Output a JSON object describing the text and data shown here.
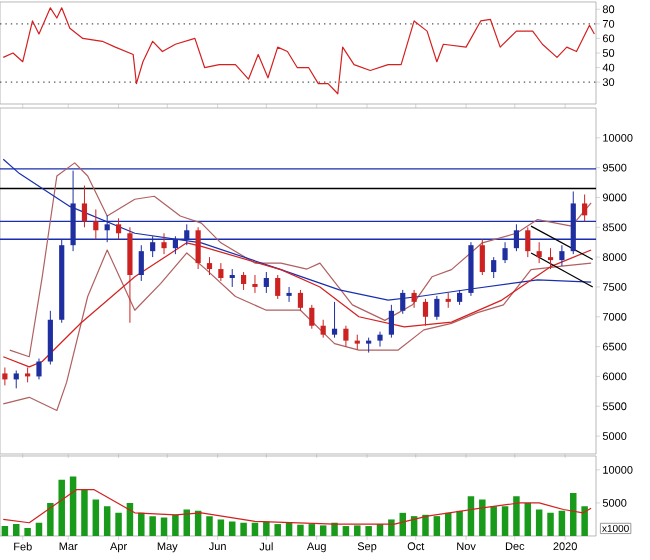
{
  "chart_data": [
    {
      "type": "line",
      "xlim": [
        "2019-01-18",
        "2020-01-20"
      ],
      "ylim": [
        15,
        85
      ],
      "yticks": [
        30,
        40,
        50,
        60,
        70,
        80
      ],
      "tick_labels": "y",
      "xticks": [
        {
          "value": "2019-02-01",
          "label": null
        },
        {
          "value": "2019-03-01",
          "label": null
        },
        {
          "value": "2019-04-01",
          "label": null
        },
        {
          "value": "2019-05-01",
          "label": null
        },
        {
          "value": "2019-06-01",
          "label": null
        },
        {
          "value": "2019-07-01",
          "label": null
        },
        {
          "value": "2019-08-01",
          "label": null
        },
        {
          "value": "2019-09-01",
          "label": null
        },
        {
          "value": "2019-10-01",
          "label": null
        },
        {
          "value": "2019-11-01",
          "label": null
        },
        {
          "value": "2019-12-01",
          "label": null
        },
        {
          "value": "2020-01-01",
          "label": null
        }
      ],
      "ref_lines": [
        {
          "axis": "y",
          "value": 30,
          "color": "#555555",
          "line_style": "dotted"
        },
        {
          "axis": "y",
          "value": 70,
          "color": "#555555",
          "line_style": "dotted"
        }
      ],
      "x": [
        "2019-01-20",
        "2019-01-26",
        "2019-02-01",
        "2019-02-07",
        "2019-02-11",
        "2019-02-18",
        "2019-02-22",
        "2019-02-25",
        "2019-03-02",
        "2019-03-10",
        "2019-03-22",
        "2019-03-30",
        "2019-04-10",
        "2019-04-12",
        "2019-04-16",
        "2019-04-22",
        "2019-04-28",
        "2019-05-06",
        "2019-05-18",
        "2019-05-24",
        "2019-06-02",
        "2019-06-12",
        "2019-06-20",
        "2019-06-26",
        "2019-07-02",
        "2019-07-08",
        "2019-07-14",
        "2019-07-20",
        "2019-07-27",
        "2019-08-02",
        "2019-08-08",
        "2019-08-14",
        "2019-08-17",
        "2019-08-24",
        "2019-09-03",
        "2019-09-14",
        "2019-09-22",
        "2019-09-30",
        "2019-10-08",
        "2019-10-14",
        "2019-10-18",
        "2019-11-01",
        "2019-11-10",
        "2019-11-16",
        "2019-11-22",
        "2019-12-02",
        "2019-12-12",
        "2019-12-18",
        "2019-12-27",
        "2020-01-02",
        "2020-01-08",
        "2020-01-16",
        "2020-01-19"
      ],
      "values": [
        47,
        50,
        44,
        72,
        63,
        81,
        74,
        81,
        67,
        60,
        58,
        54,
        49,
        29,
        44,
        58,
        51,
        56,
        60,
        40,
        42,
        42,
        32,
        49,
        33,
        54,
        51,
        40,
        40,
        29,
        29,
        22,
        54,
        42,
        38,
        42,
        42,
        72,
        65,
        44,
        56,
        54,
        72,
        73,
        54,
        65,
        65,
        56,
        47,
        54,
        51,
        69,
        63
      ],
      "color": "#d42020"
    },
    {
      "type": "candlestick",
      "xlim": [
        "2019-01-18",
        "2020-01-20"
      ],
      "ylim": [
        4700,
        10500
      ],
      "yticks": [
        5000,
        5500,
        6000,
        6500,
        7000,
        7500,
        8000,
        8500,
        9000,
        9500,
        10000
      ],
      "tick_labels": "y",
      "xticks": [
        {
          "value": "2019-02-01",
          "label": null
        },
        {
          "value": "2019-03-01",
          "label": null
        },
        {
          "value": "2019-04-01",
          "label": null
        },
        {
          "value": "2019-05-01",
          "label": null
        },
        {
          "value": "2019-06-01",
          "label": null
        },
        {
          "value": "2019-07-01",
          "label": null
        },
        {
          "value": "2019-08-01",
          "label": null
        },
        {
          "value": "2019-09-01",
          "label": null
        },
        {
          "value": "2019-10-01",
          "label": null
        },
        {
          "value": "2019-11-01",
          "label": null
        },
        {
          "value": "2019-12-01",
          "label": null
        },
        {
          "value": "2020-01-01",
          "label": null
        }
      ],
      "ref_lines": [
        {
          "axis": "y",
          "value": 9480,
          "color": "#1a2fb0",
          "line_style": "solid"
        },
        {
          "axis": "y",
          "value": 9150,
          "color": "#000000",
          "line_style": "solid"
        },
        {
          "axis": "y",
          "value": 8600,
          "color": "#1a2fb0",
          "line_style": "solid"
        },
        {
          "axis": "y",
          "value": 8300,
          "color": "#1a2fb0",
          "line_style": "solid"
        }
      ],
      "x": [
        "2019-01-21",
        "2019-01-28",
        "2019-02-04",
        "2019-02-11",
        "2019-02-18",
        "2019-02-25",
        "2019-03-04",
        "2019-03-11",
        "2019-03-18",
        "2019-03-25",
        "2019-04-01",
        "2019-04-08",
        "2019-04-15",
        "2019-04-22",
        "2019-04-29",
        "2019-05-06",
        "2019-05-13",
        "2019-05-20",
        "2019-05-27",
        "2019-06-03",
        "2019-06-10",
        "2019-06-17",
        "2019-06-24",
        "2019-07-01",
        "2019-07-08",
        "2019-07-15",
        "2019-07-22",
        "2019-07-29",
        "2019-08-05",
        "2019-08-12",
        "2019-08-19",
        "2019-08-26",
        "2019-09-02",
        "2019-09-09",
        "2019-09-16",
        "2019-09-23",
        "2019-09-30",
        "2019-10-07",
        "2019-10-14",
        "2019-10-21",
        "2019-10-28",
        "2019-11-04",
        "2019-11-11",
        "2019-11-18",
        "2019-11-25",
        "2019-12-02",
        "2019-12-09",
        "2019-12-16",
        "2019-12-23",
        "2019-12-30",
        "2020-01-06",
        "2020-01-13"
      ],
      "ohlc": [
        [
          6050,
          6150,
          5850,
          5950
        ],
        [
          5950,
          6100,
          5800,
          6050
        ],
        [
          6050,
          6150,
          5900,
          6000
        ],
        [
          6000,
          6300,
          5950,
          6250
        ],
        [
          6250,
          7100,
          6200,
          6950
        ],
        [
          6950,
          8300,
          6900,
          8200
        ],
        [
          8200,
          9450,
          8100,
          8900
        ],
        [
          8900,
          9200,
          8500,
          8600
        ],
        [
          8600,
          8800,
          8300,
          8450
        ],
        [
          8450,
          8700,
          8250,
          8550
        ],
        [
          8550,
          8650,
          8300,
          8400
        ],
        [
          8400,
          8500,
          6900,
          7700
        ],
        [
          7700,
          8200,
          7600,
          8100
        ],
        [
          8100,
          8350,
          8000,
          8250
        ],
        [
          8250,
          8400,
          8050,
          8150
        ],
        [
          8150,
          8350,
          8050,
          8300
        ],
        [
          8300,
          8550,
          8200,
          8450
        ],
        [
          8450,
          8500,
          7800,
          7900
        ],
        [
          7900,
          8000,
          7700,
          7800
        ],
        [
          7800,
          7900,
          7600,
          7650
        ],
        [
          7650,
          7800,
          7500,
          7700
        ],
        [
          7700,
          7750,
          7450,
          7550
        ],
        [
          7550,
          7700,
          7400,
          7500
        ],
        [
          7500,
          7750,
          7400,
          7650
        ],
        [
          7650,
          7700,
          7300,
          7350
        ],
        [
          7350,
          7500,
          7250,
          7400
        ],
        [
          7400,
          7450,
          7100,
          7150
        ],
        [
          7150,
          7200,
          6800,
          6850
        ],
        [
          6850,
          6950,
          6650,
          6700
        ],
        [
          6700,
          7250,
          6650,
          6800
        ],
        [
          6800,
          6850,
          6500,
          6600
        ],
        [
          6600,
          6700,
          6450,
          6550
        ],
        [
          6550,
          6650,
          6400,
          6600
        ],
        [
          6600,
          6750,
          6500,
          6700
        ],
        [
          6700,
          7200,
          6650,
          7100
        ],
        [
          7100,
          7450,
          7050,
          7400
        ],
        [
          7400,
          7450,
          7150,
          7250
        ],
        [
          7250,
          7300,
          6850,
          7000
        ],
        [
          7000,
          7350,
          6950,
          7300
        ],
        [
          7300,
          7400,
          7150,
          7250
        ],
        [
          7250,
          7450,
          7200,
          7400
        ],
        [
          7400,
          8250,
          7350,
          8200
        ],
        [
          8200,
          8300,
          7700,
          7750
        ],
        [
          7750,
          8000,
          7650,
          7950
        ],
        [
          7950,
          8250,
          7900,
          8150
        ],
        [
          8150,
          8550,
          8100,
          8450
        ],
        [
          8450,
          8500,
          8000,
          8100
        ],
        [
          8100,
          8250,
          7900,
          8000
        ],
        [
          8000,
          8150,
          7800,
          7950
        ],
        [
          7950,
          8200,
          7850,
          8100
        ],
        [
          8100,
          9100,
          8050,
          8900
        ],
        [
          8900,
          9050,
          8600,
          8700
        ]
      ],
      "colors": [
        "#cc2222",
        "#1f2f9f",
        "#cc2222",
        "#1f2f9f",
        "#1f2f9f",
        "#1f2f9f",
        "#1f2f9f",
        "#cc2222",
        "#cc2222",
        "#1f2f9f",
        "#cc2222",
        "#cc2222",
        "#1f2f9f",
        "#1f2f9f",
        "#cc2222",
        "#1f2f9f",
        "#1f2f9f",
        "#cc2222",
        "#cc2222",
        "#cc2222",
        "#1f2f9f",
        "#cc2222",
        "#cc2222",
        "#1f2f9f",
        "#cc2222",
        "#1f2f9f",
        "#cc2222",
        "#cc2222",
        "#cc2222",
        "#1f2f9f",
        "#cc2222",
        "#cc2222",
        "#1f2f9f",
        "#1f2f9f",
        "#1f2f9f",
        "#1f2f9f",
        "#cc2222",
        "#cc2222",
        "#1f2f9f",
        "#cc2222",
        "#1f2f9f",
        "#1f2f9f",
        "#cc2222",
        "#1f2f9f",
        "#1f2f9f",
        "#1f2f9f",
        "#cc2222",
        "#cc2222",
        "#cc2222",
        "#1f2f9f",
        "#1f2f9f",
        "#cc2222"
      ],
      "series": [
        {
          "type": "line",
          "color": "#b06060",
          "x": [
            "2019-01-24",
            "2019-02-05",
            "2019-02-13",
            "2019-02-22",
            "2019-03-05",
            "2019-03-13",
            "2019-03-25",
            "2019-04-11",
            "2019-04-23",
            "2019-05-09",
            "2019-05-22",
            "2019-06-03",
            "2019-06-24",
            "2019-07-10",
            "2019-07-26",
            "2019-08-03",
            "2019-08-23",
            "2019-09-12",
            "2019-09-29",
            "2019-10-11",
            "2019-10-23",
            "2019-11-11",
            "2019-12-02",
            "2019-12-15",
            "2020-01-05",
            "2020-01-17"
          ],
          "values": [
            6440,
            6330,
            7670,
            9360,
            9580,
            9360,
            8690,
            8970,
            9020,
            8690,
            8570,
            8240,
            7900,
            7900,
            7800,
            7900,
            7200,
            6940,
            7200,
            7670,
            7790,
            8240,
            8400,
            8630,
            8520,
            8910
          ]
        },
        {
          "type": "line",
          "color": "#b06060",
          "x": [
            "2019-01-20",
            "2019-02-05",
            "2019-02-22",
            "2019-02-28",
            "2019-03-13",
            "2019-03-25",
            "2019-04-11",
            "2019-04-27",
            "2019-05-13",
            "2019-05-25",
            "2019-06-12",
            "2019-07-01",
            "2019-07-22",
            "2019-08-12",
            "2019-08-27",
            "2019-09-20",
            "2019-10-06",
            "2019-10-23",
            "2019-11-08",
            "2019-11-24",
            "2019-12-11",
            "2019-12-30",
            "2020-01-17"
          ],
          "values": [
            5540,
            5650,
            5430,
            5900,
            7340,
            8120,
            7110,
            7560,
            8070,
            7790,
            7340,
            7110,
            7110,
            6550,
            6440,
            6440,
            6780,
            6890,
            7070,
            7200,
            7790,
            7850,
            7900
          ]
        },
        {
          "type": "line",
          "color": "#1a2fb0",
          "x": [
            "2019-01-20",
            "2019-01-30",
            "2019-03-02",
            "2019-04-11",
            "2019-05-22",
            "2019-07-10",
            "2019-08-15",
            "2019-09-14",
            "2019-10-03",
            "2019-11-05",
            "2019-12-15",
            "2020-01-17"
          ],
          "values": [
            9640,
            9400,
            8850,
            8400,
            8240,
            7790,
            7450,
            7280,
            7340,
            7470,
            7620,
            7580
          ]
        },
        {
          "type": "line",
          "color": "#d42020",
          "x": [
            "2019-01-20",
            "2019-02-05",
            "2019-02-13",
            "2019-03-09",
            "2019-04-11",
            "2019-05-13",
            "2019-05-22",
            "2019-07-10",
            "2019-08-03",
            "2019-08-27",
            "2019-09-24",
            "2019-10-23",
            "2019-11-23",
            "2019-12-23",
            "2020-01-17"
          ],
          "values": [
            6330,
            6160,
            6250,
            6900,
            7670,
            8240,
            8180,
            7790,
            7500,
            7000,
            6830,
            6910,
            7280,
            7840,
            8120
          ]
        },
        {
          "type": "line",
          "color": "#000000",
          "x": [
            "2019-12-11",
            "2020-01-18"
          ],
          "values": [
            8520,
            7960
          ]
        },
        {
          "type": "line",
          "color": "#000000",
          "x": [
            "2019-12-11",
            "2020-01-18"
          ],
          "values": [
            8070,
            7500
          ]
        }
      ]
    },
    {
      "type": "bar",
      "xlim": [
        "2019-01-18",
        "2020-01-20"
      ],
      "ylim": [
        0,
        12100
      ],
      "yticks": [
        5000,
        10000
      ],
      "xticks": [
        {
          "value": "2019-02-01",
          "label": "Feb"
        },
        {
          "value": "2019-03-01",
          "label": "Mar"
        },
        {
          "value": "2019-04-01",
          "label": "Apr"
        },
        {
          "value": "2019-05-01",
          "label": "May"
        },
        {
          "value": "2019-06-01",
          "label": "Jun"
        },
        {
          "value": "2019-07-01",
          "label": "Jul"
        },
        {
          "value": "2019-08-01",
          "label": "Aug"
        },
        {
          "value": "2019-09-01",
          "label": "Sep"
        },
        {
          "value": "2019-10-01",
          "label": "Oct"
        },
        {
          "value": "2019-11-01",
          "label": "Nov"
        },
        {
          "value": "2019-12-01",
          "label": "Dec"
        },
        {
          "value": "2020-01-01",
          "label": "2020"
        }
      ],
      "annotations": [
        "x1000"
      ],
      "series": [
        {
          "type": "bar",
          "color": "#1a9a1a",
          "x": [
            "2019-01-21",
            "2019-01-28",
            "2019-02-04",
            "2019-02-11",
            "2019-02-18",
            "2019-02-25",
            "2019-03-04",
            "2019-03-11",
            "2019-03-18",
            "2019-03-25",
            "2019-04-01",
            "2019-04-08",
            "2019-04-15",
            "2019-04-22",
            "2019-04-29",
            "2019-05-06",
            "2019-05-13",
            "2019-05-20",
            "2019-05-27",
            "2019-06-03",
            "2019-06-10",
            "2019-06-17",
            "2019-06-24",
            "2019-07-01",
            "2019-07-08",
            "2019-07-15",
            "2019-07-22",
            "2019-07-29",
            "2019-08-05",
            "2019-08-12",
            "2019-08-19",
            "2019-08-26",
            "2019-09-02",
            "2019-09-09",
            "2019-09-16",
            "2019-09-23",
            "2019-09-30",
            "2019-10-07",
            "2019-10-14",
            "2019-10-21",
            "2019-10-28",
            "2019-11-04",
            "2019-11-11",
            "2019-11-18",
            "2019-11-25",
            "2019-12-02",
            "2019-12-09",
            "2019-12-16",
            "2019-12-23",
            "2019-12-30",
            "2020-01-06",
            "2020-01-13"
          ],
          "values": [
            1500,
            1800,
            1200,
            2000,
            5000,
            8500,
            9000,
            7000,
            5500,
            4500,
            3500,
            5000,
            3500,
            3000,
            2800,
            3200,
            4000,
            3800,
            3000,
            2500,
            2200,
            2000,
            2000,
            2200,
            1800,
            2000,
            1700,
            1800,
            1600,
            2000,
            1500,
            1600,
            1500,
            1800,
            2500,
            3500,
            3000,
            3200,
            3000,
            3500,
            3800,
            6000,
            5500,
            4500,
            4500,
            6000,
            5000,
            4000,
            3500,
            3800,
            6500,
            4500
          ]
        },
        {
          "type": "line",
          "color": "#d42020",
          "x": [
            "2019-01-20",
            "2019-02-05",
            "2019-03-06",
            "2019-03-17",
            "2019-04-11",
            "2019-05-06",
            "2019-05-22",
            "2019-06-24",
            "2019-08-12",
            "2019-09-18",
            "2019-10-08",
            "2019-11-10",
            "2019-12-04",
            "2019-12-16",
            "2019-12-31",
            "2020-01-12",
            "2020-01-17"
          ],
          "values": [
            2500,
            2000,
            7000,
            7000,
            3500,
            3200,
            3500,
            2200,
            1800,
            1800,
            3000,
            4200,
            5000,
            5000,
            4000,
            3500,
            4200
          ]
        }
      ]
    }
  ]
}
